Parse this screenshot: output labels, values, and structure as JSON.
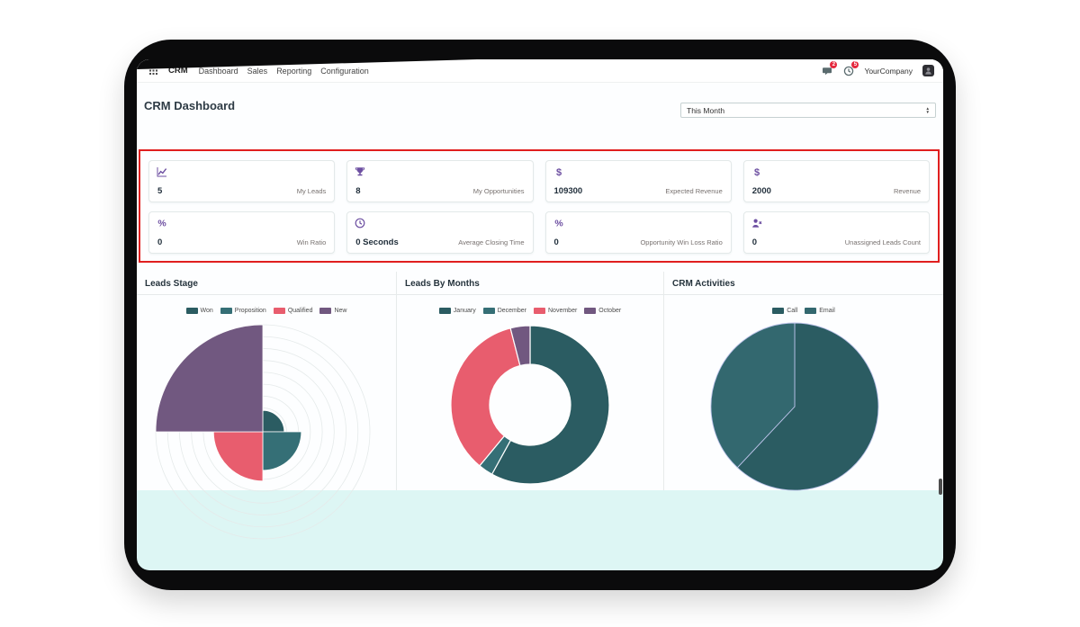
{
  "navbar": {
    "brand": "CRM",
    "menus": [
      "Dashboard",
      "Sales",
      "Reporting",
      "Configuration"
    ],
    "right": {
      "messages_badge": "2",
      "activities_badge": "5",
      "company": "YourCompany"
    }
  },
  "header": {
    "title": "CRM Dashboard",
    "filter_value": "This Month"
  },
  "kpis": {
    "cards": [
      {
        "icon": "line-chart-icon",
        "value": "5",
        "label": "My Leads"
      },
      {
        "icon": "trophy-icon",
        "value": "8",
        "label": "My Opportunities"
      },
      {
        "icon": "dollar-icon",
        "value": "109300",
        "label": "Expected Revenue"
      },
      {
        "icon": "dollar-icon",
        "value": "2000",
        "label": "Revenue"
      },
      {
        "icon": "percent-icon",
        "value": "0",
        "label": "Win Ratio"
      },
      {
        "icon": "clock-icon",
        "value": "0 Seconds",
        "label": "Average Closing Time"
      },
      {
        "icon": "percent-icon",
        "value": "0",
        "label": "Opportunity Win Loss Ratio"
      },
      {
        "icon": "user-x-icon",
        "value": "0",
        "label": "Unassigned Leads Count"
      }
    ]
  },
  "colors": {
    "accent_purple": "#6d4fa1",
    "annotation_red": "#e01f1f",
    "teal_dark": "#2b5c62",
    "teal_mid": "#356f76",
    "red_pink": "#e85d6e",
    "purple": "#715880",
    "screen_bg": "#ddf6f4"
  },
  "chart_data": [
    {
      "type": "polarArea",
      "title": "Leads Stage",
      "labels": [
        "Won",
        "Proposition",
        "Qualified",
        "New"
      ],
      "values": [
        1,
        1.8,
        2.3,
        5
      ],
      "colors": [
        "#2b5c62",
        "#356f76",
        "#e85d6e",
        "#715880"
      ],
      "rmax_value": 5,
      "grid": true,
      "legend_position": "top"
    },
    {
      "type": "doughnut",
      "title": "Leads By Months",
      "labels": [
        "January",
        "December",
        "November",
        "October"
      ],
      "values": [
        58,
        3,
        35,
        4
      ],
      "colors": [
        "#2b5c62",
        "#356f76",
        "#e85d6e",
        "#715880"
      ],
      "legend_position": "top"
    },
    {
      "type": "pie",
      "title": "CRM Activities",
      "labels": [
        "Call",
        "Email"
      ],
      "values": [
        62,
        38
      ],
      "colors": [
        "#2b5c62",
        "#33686f"
      ],
      "legend_position": "top"
    }
  ]
}
